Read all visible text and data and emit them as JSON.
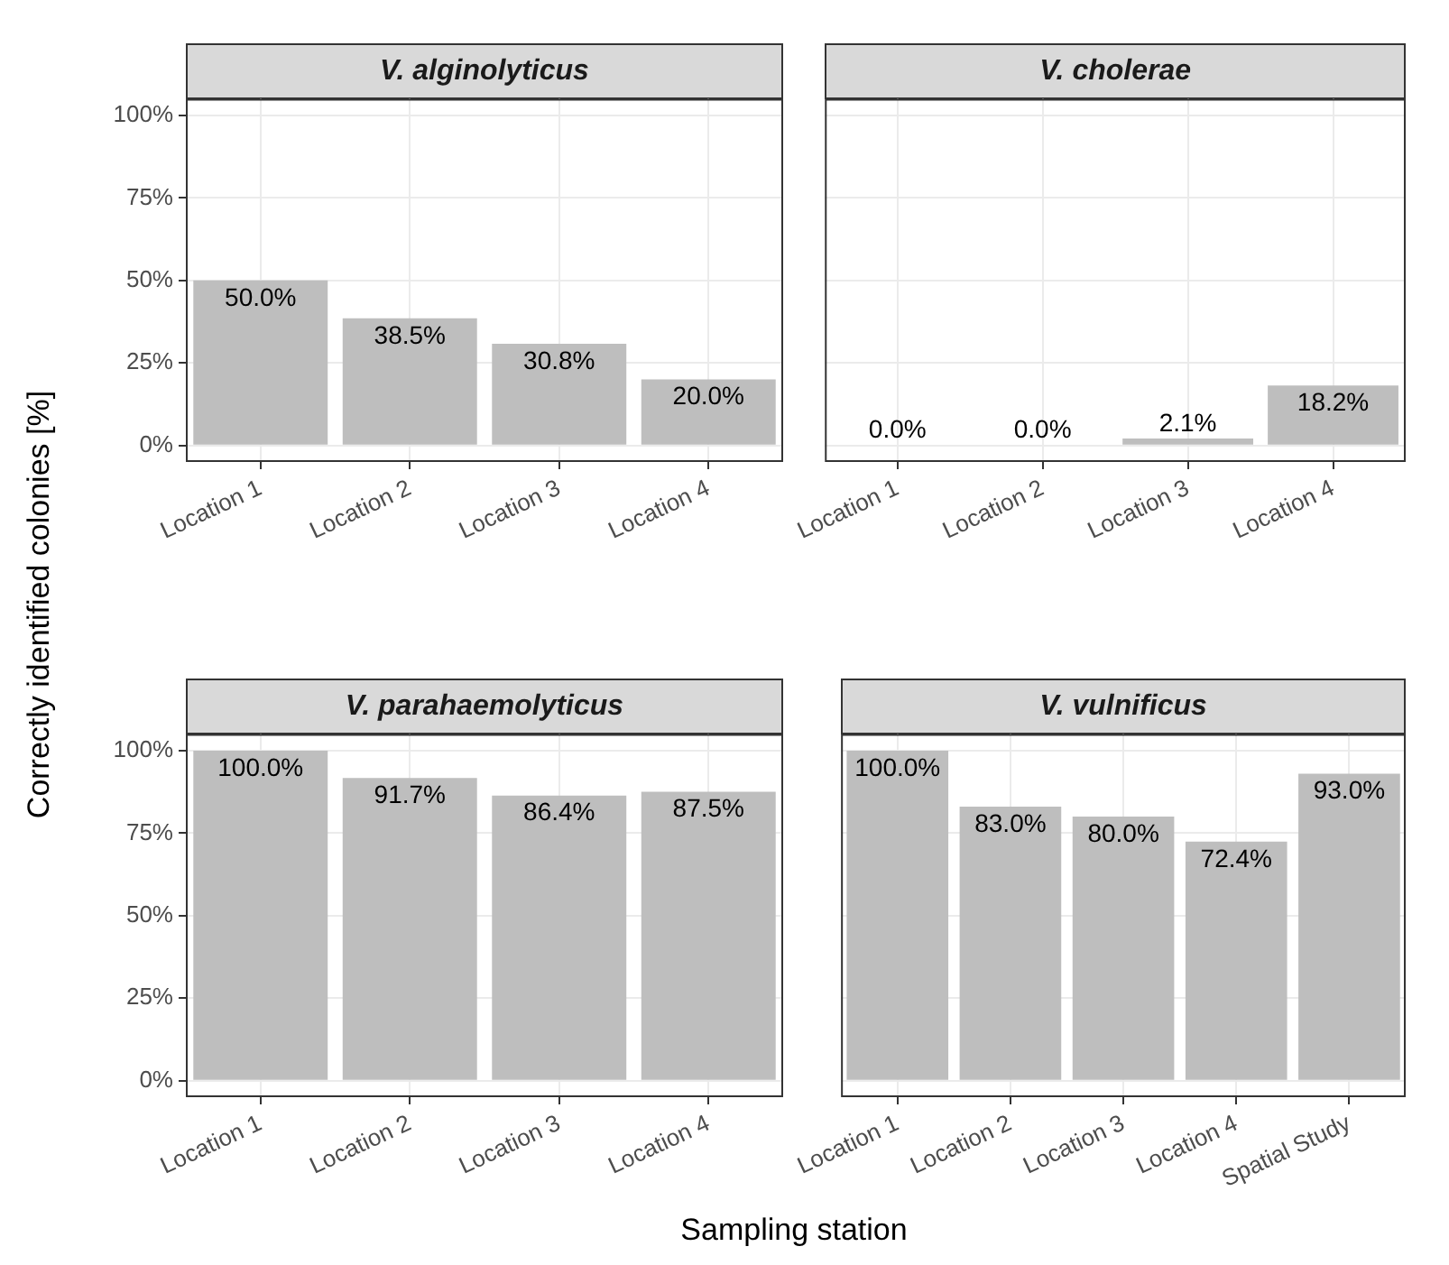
{
  "chart_data": [
    {
      "type": "bar",
      "title": "V. alginolyticus",
      "ylabel": "Correctly identified colonies [%]",
      "categories": [
        "Location 1",
        "Location 2",
        "Location 3",
        "Location 4"
      ],
      "values": [
        50.0,
        38.5,
        30.8,
        20.0
      ],
      "value_labels": [
        "50.0%",
        "38.5%",
        "30.8%",
        "20.0%"
      ],
      "color": "#bebebe",
      "ylim": [
        -5,
        105
      ],
      "yticks": [
        {
          "value": 0,
          "label": "0%"
        },
        {
          "value": 25,
          "label": "25%"
        },
        {
          "value": 50,
          "label": "50%"
        },
        {
          "value": 75,
          "label": "75%"
        },
        {
          "value": 100,
          "label": "100%"
        }
      ],
      "grid": true
    },
    {
      "type": "bar",
      "title": "V. cholerae",
      "categories": [
        "Location 1",
        "Location 2",
        "Location 3",
        "Location 4"
      ],
      "values": [
        0.0,
        0.0,
        2.1,
        18.2
      ],
      "value_labels": [
        "0.0%",
        "0.0%",
        "2.1%",
        "18.2%"
      ],
      "color": "#bebebe",
      "ylim": [
        -5,
        105
      ],
      "yticks": [
        {
          "value": 0,
          "label": null
        },
        {
          "value": 25,
          "label": null
        },
        {
          "value": 50,
          "label": null
        },
        {
          "value": 75,
          "label": null
        },
        {
          "value": 100,
          "label": null
        }
      ],
      "grid": true,
      "tick_labels": "x"
    },
    {
      "type": "bar",
      "title": "V. parahaemolyticus",
      "xlabel": "Sampling station",
      "categories": [
        "Location 1",
        "Location 2",
        "Location 3",
        "Location 4"
      ],
      "values": [
        100.0,
        91.7,
        86.4,
        87.5
      ],
      "value_labels": [
        "100.0%",
        "91.7%",
        "86.4%",
        "87.5%"
      ],
      "color": "#bebebe",
      "ylim": [
        -5,
        105
      ],
      "yticks": [
        {
          "value": 0,
          "label": "0%"
        },
        {
          "value": 25,
          "label": "25%"
        },
        {
          "value": 50,
          "label": "50%"
        },
        {
          "value": 75,
          "label": "75%"
        },
        {
          "value": 100,
          "label": "100%"
        }
      ],
      "grid": true
    },
    {
      "type": "bar",
      "title": "V. vulnificus",
      "categories": [
        "Location 1",
        "Location 2",
        "Location 3",
        "Location 4",
        "Spatial Study"
      ],
      "values": [
        100.0,
        83.0,
        80.0,
        72.4,
        93.0
      ],
      "value_labels": [
        "100.0%",
        "83.0%",
        "80.0%",
        "72.4%",
        "93.0%"
      ],
      "color": "#bebebe",
      "ylim": [
        -5,
        105
      ],
      "yticks": [
        {
          "value": 0,
          "label": null
        },
        {
          "value": 25,
          "label": null
        },
        {
          "value": 50,
          "label": null
        },
        {
          "value": 75,
          "label": null
        },
        {
          "value": 100,
          "label": null
        }
      ],
      "grid": true,
      "tick_labels": "x"
    }
  ]
}
